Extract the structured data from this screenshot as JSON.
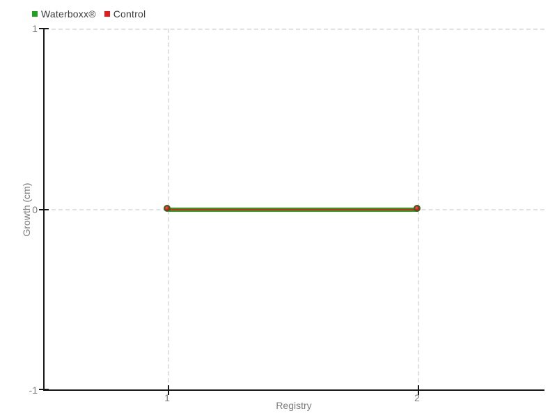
{
  "chart_data": {
    "type": "line",
    "title": "",
    "x": [
      1,
      2
    ],
    "series": [
      {
        "name": "Waterboxx®",
        "color": "#1fa21f",
        "values": [
          0,
          0
        ]
      },
      {
        "name": "Control",
        "color": "#e01f1f",
        "values": [
          0,
          0
        ]
      }
    ],
    "xlabel": "Registry",
    "ylabel": "Growth (cm)",
    "xlim": [
      0.5,
      2.5
    ],
    "ylim": [
      -1,
      1
    ],
    "x_tick_labels": [
      "1",
      "2"
    ],
    "y_tick_labels": [
      "1",
      "0",
      "-1"
    ],
    "grid": true,
    "grid_style": "dashed",
    "legend_position": "top-left",
    "marker": "circle",
    "marker_fill": "#e31212",
    "marker_border": "#2d641e"
  },
  "legend": {
    "items": [
      {
        "label": "Waterboxx®",
        "color": "#1fa21f"
      },
      {
        "label": "Control",
        "color": "#e51c1c"
      }
    ]
  },
  "axes": {
    "x_title": "Registry",
    "y_title": "Growth (cm)",
    "y_ticks": {
      "top": "1",
      "mid": "0",
      "bottom": "-1"
    },
    "x_ticks": {
      "first": "1",
      "second": "2"
    }
  },
  "colors": {
    "axis": "#171717",
    "grid": "#e1e1e1",
    "tick_label": "#7b7b7b",
    "legend_text": "#3c3c3c",
    "background": "#ffffff"
  }
}
